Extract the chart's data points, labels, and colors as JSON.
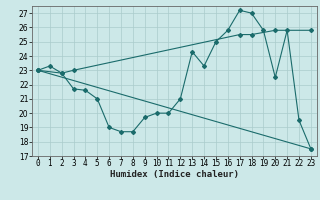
{
  "title": "",
  "xlabel": "Humidex (Indice chaleur)",
  "ylabel": "",
  "background_color": "#cce8e8",
  "grid_color": "#aacccc",
  "line_color": "#1a6b6b",
  "xlim": [
    -0.5,
    23.5
  ],
  "ylim": [
    17,
    27.5
  ],
  "yticks": [
    17,
    18,
    19,
    20,
    21,
    22,
    23,
    24,
    25,
    26,
    27
  ],
  "xticks": [
    0,
    1,
    2,
    3,
    4,
    5,
    6,
    7,
    8,
    9,
    10,
    11,
    12,
    13,
    14,
    15,
    16,
    17,
    18,
    19,
    20,
    21,
    22,
    23
  ],
  "series1_x": [
    0,
    1,
    2,
    3,
    4,
    5,
    6,
    7,
    8,
    9,
    10,
    11,
    12,
    13,
    14,
    15,
    16,
    17,
    18,
    19,
    20,
    21,
    22,
    23
  ],
  "series1_y": [
    23.0,
    23.3,
    22.8,
    21.7,
    21.6,
    21.0,
    19.0,
    18.7,
    18.7,
    19.7,
    20.0,
    20.0,
    21.0,
    24.3,
    23.3,
    25.0,
    25.8,
    27.2,
    27.0,
    25.8,
    22.5,
    25.8,
    19.5,
    17.5
  ],
  "series2_x": [
    0,
    2,
    3,
    17,
    18,
    20,
    23
  ],
  "series2_y": [
    23.0,
    22.8,
    23.0,
    25.5,
    25.5,
    25.8,
    25.8
  ],
  "series3_x": [
    0,
    23
  ],
  "series3_y": [
    23.0,
    17.5
  ],
  "figsize": [
    3.2,
    2.0
  ],
  "dpi": 100
}
